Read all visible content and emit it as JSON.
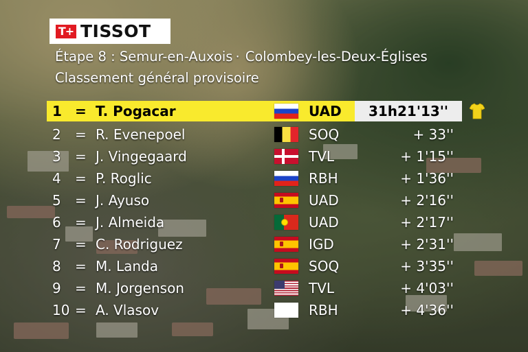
{
  "sponsor": {
    "mark": "T+",
    "name": "TISSOT"
  },
  "stage": {
    "title": "Étape 8 : Semur-en-Auxois",
    "separator": "·",
    "destination": "Colombey-les-Deux-Églises",
    "subtitle": "Classement général provisoire"
  },
  "standings": [
    {
      "pos": "1",
      "mark": "=",
      "name": "T. Pogacar",
      "flag": "slovenia-flag",
      "team": "UAD",
      "time": "31h21'13''"
    },
    {
      "pos": "2",
      "mark": "=",
      "name": "R. Evenepoel",
      "flag": "belgium-flag",
      "team": "SOQ",
      "time": "+ 33''"
    },
    {
      "pos": "3",
      "mark": "=",
      "name": "J. Vingegaard",
      "flag": "denmark-flag",
      "team": "TVL",
      "time": "+ 1'15''"
    },
    {
      "pos": "4",
      "mark": "=",
      "name": "P. Roglic",
      "flag": "slovenia-flag",
      "team": "RBH",
      "time": "+ 1'36''"
    },
    {
      "pos": "5",
      "mark": "=",
      "name": "J. Ayuso",
      "flag": "spain-flag",
      "team": "UAD",
      "time": "+ 2'16''"
    },
    {
      "pos": "6",
      "mark": "=",
      "name": "J. Almeida",
      "flag": "portugal-flag",
      "team": "UAD",
      "time": "+ 2'17''"
    },
    {
      "pos": "7",
      "mark": "=",
      "name": "C. Rodriguez",
      "flag": "spain-flag",
      "team": "IGD",
      "time": "+ 2'31''"
    },
    {
      "pos": "8",
      "mark": "=",
      "name": "M. Landa",
      "flag": "spain-flag",
      "team": "SOQ",
      "time": "+ 3'35''"
    },
    {
      "pos": "9",
      "mark": "=",
      "name": "M. Jorgenson",
      "flag": "usa-flag",
      "team": "TVL",
      "time": "+ 4'03''"
    },
    {
      "pos": "10",
      "mark": "=",
      "name": "A. Vlasov",
      "flag": "blank-flag",
      "team": "RBH",
      "time": "+ 4'36''"
    }
  ],
  "leader_jersey": {
    "icon": "yellow-jersey-icon",
    "color": "#f2d21b"
  },
  "colors": {
    "leader_bar": "#f9ea2d",
    "leader_time_box": "#ededed",
    "text": "#ffffff"
  }
}
